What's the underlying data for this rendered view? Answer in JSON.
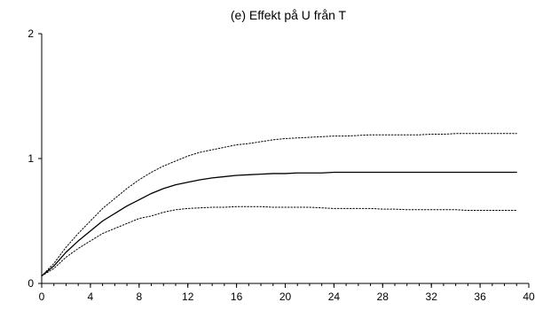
{
  "chart_data": {
    "type": "line",
    "title": "(e) Effekt på U från T",
    "xlabel": "",
    "ylabel": "",
    "xlim": [
      0,
      40
    ],
    "ylim": [
      0,
      2
    ],
    "xticks": [
      "0",
      "4",
      "8",
      "12",
      "16",
      "20",
      "24",
      "28",
      "32",
      "36",
      "40"
    ],
    "xticks_minor_step": 1,
    "yticks": [
      "0",
      "1",
      "2"
    ],
    "grid": false,
    "legend": "none",
    "x": [
      0,
      1,
      2,
      3,
      4,
      5,
      6,
      7,
      8,
      9,
      10,
      11,
      12,
      13,
      14,
      15,
      16,
      17,
      18,
      19,
      20,
      21,
      22,
      23,
      24,
      25,
      26,
      27,
      28,
      29,
      30,
      31,
      32,
      33,
      34,
      35,
      36,
      37,
      38,
      39
    ],
    "series": [
      {
        "style": "solid",
        "values": [
          0.06,
          0.14,
          0.25,
          0.34,
          0.42,
          0.5,
          0.56,
          0.62,
          0.67,
          0.72,
          0.76,
          0.79,
          0.81,
          0.83,
          0.845,
          0.855,
          0.865,
          0.87,
          0.875,
          0.88,
          0.88,
          0.885,
          0.885,
          0.885,
          0.89,
          0.89,
          0.89,
          0.89,
          0.89,
          0.89,
          0.89,
          0.89,
          0.89,
          0.89,
          0.89,
          0.89,
          0.89,
          0.89,
          0.89,
          0.89
        ]
      },
      {
        "style": "dotted",
        "values": [
          0.06,
          0.16,
          0.29,
          0.4,
          0.5,
          0.6,
          0.68,
          0.76,
          0.83,
          0.89,
          0.94,
          0.98,
          1.02,
          1.05,
          1.07,
          1.09,
          1.11,
          1.12,
          1.135,
          1.15,
          1.16,
          1.165,
          1.17,
          1.175,
          1.18,
          1.18,
          1.185,
          1.19,
          1.19,
          1.19,
          1.19,
          1.19,
          1.195,
          1.195,
          1.2,
          1.2,
          1.2,
          1.2,
          1.2,
          1.2
        ]
      },
      {
        "style": "dotted",
        "values": [
          0.06,
          0.12,
          0.21,
          0.28,
          0.34,
          0.4,
          0.44,
          0.48,
          0.52,
          0.54,
          0.57,
          0.59,
          0.6,
          0.605,
          0.61,
          0.61,
          0.615,
          0.615,
          0.615,
          0.61,
          0.61,
          0.61,
          0.61,
          0.605,
          0.6,
          0.6,
          0.6,
          0.6,
          0.595,
          0.595,
          0.59,
          0.59,
          0.59,
          0.59,
          0.59,
          0.585,
          0.585,
          0.585,
          0.585,
          0.585
        ]
      }
    ]
  }
}
